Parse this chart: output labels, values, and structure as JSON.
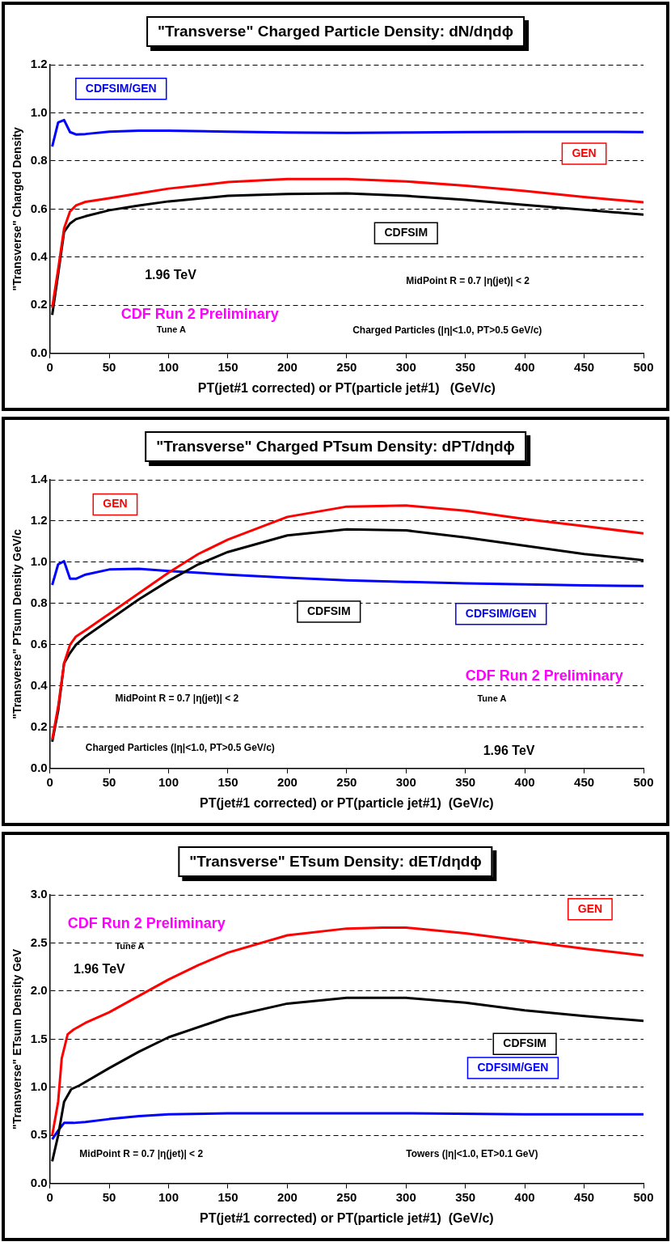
{
  "chart_data": [
    {
      "type": "line",
      "title": "\"Transverse\" Charged Particle Density: dN/dηdϕ",
      "xlabel": "PT(jet#1 corrected) or PT(particle jet#1)   (GeV/c)",
      "ylabel": "\"Transverse\" Charged Density",
      "xlim": [
        0,
        500
      ],
      "xticks": [
        0,
        50,
        100,
        150,
        200,
        250,
        300,
        350,
        400,
        450,
        500
      ],
      "ylim": [
        0,
        1.2
      ],
      "yticks": [
        {
          "value": 0,
          "label": "0.0"
        },
        0.2,
        0.4,
        0.6,
        0.8,
        {
          "value": 1,
          "label": "1.0"
        },
        1.2
      ],
      "grid": "y",
      "legend": false,
      "marker": "none",
      "line_style": "solid",
      "annotations": [
        "1.96 TeV",
        "CDF Run 2 Preliminary",
        "Tune A",
        "MidPoint R = 0.7 |η(jet)| < 2",
        "Charged Particles (|η|<1.0, PT>0.5 GeV/c)"
      ],
      "series": [
        {
          "name": "CDFSIM/GEN",
          "color": "#0000ff",
          "x": [
            2,
            7,
            12,
            17,
            22,
            30,
            50,
            75,
            100,
            150,
            200,
            250,
            300,
            350,
            400,
            450,
            500
          ],
          "values": [
            0.86,
            0.96,
            0.97,
            0.92,
            0.91,
            0.912,
            0.922,
            0.926,
            0.926,
            0.922,
            0.918,
            0.917,
            0.918,
            0.92,
            0.921,
            0.921,
            0.92
          ]
        },
        {
          "name": "GEN",
          "color": "#ff0000",
          "x": [
            2,
            7,
            12,
            17,
            22,
            30,
            50,
            75,
            100,
            150,
            200,
            250,
            300,
            350,
            400,
            450,
            500
          ],
          "values": [
            0.19,
            0.35,
            0.52,
            0.59,
            0.615,
            0.63,
            0.645,
            0.665,
            0.685,
            0.712,
            0.725,
            0.725,
            0.715,
            0.697,
            0.675,
            0.65,
            0.628
          ]
        },
        {
          "name": "CDFSIM",
          "color": "#000000",
          "x": [
            2,
            7,
            12,
            17,
            22,
            30,
            50,
            75,
            100,
            150,
            200,
            250,
            300,
            350,
            400,
            450,
            500
          ],
          "values": [
            0.16,
            0.33,
            0.505,
            0.54,
            0.558,
            0.57,
            0.595,
            0.615,
            0.632,
            0.655,
            0.663,
            0.665,
            0.655,
            0.638,
            0.617,
            0.597,
            0.577
          ]
        }
      ]
    },
    {
      "type": "line",
      "title": "\"Transverse\" Charged PTsum Density: dPT/dηdϕ",
      "xlabel": "PT(jet#1 corrected) or PT(particle jet#1)  (GeV/c)",
      "ylabel": "\"Transverse\" PTsum Density GeV/c",
      "xlim": [
        0,
        500
      ],
      "xticks": [
        0,
        50,
        100,
        150,
        200,
        250,
        300,
        350,
        400,
        450,
        500
      ],
      "ylim": [
        0,
        1.4
      ],
      "yticks": [
        {
          "value": 0,
          "label": "0.0"
        },
        0.2,
        0.4,
        0.6,
        0.8,
        {
          "value": 1,
          "label": "1.0"
        },
        1.2,
        1.4
      ],
      "grid": "y",
      "legend": false,
      "marker": "none",
      "line_style": "solid",
      "annotations": [
        "1.96 TeV",
        "CDF Run 2 Preliminary",
        "Tune A",
        "MidPoint R = 0.7 |η(jet)| < 2",
        "Charged Particles (|η|<1.0, PT>0.5 GeV/c)"
      ],
      "series": [
        {
          "name": "GEN",
          "color": "#ff0000",
          "x": [
            2,
            7,
            12,
            17,
            22,
            30,
            50,
            75,
            100,
            125,
            150,
            200,
            250,
            300,
            350,
            400,
            450,
            500
          ],
          "values": [
            0.14,
            0.3,
            0.51,
            0.6,
            0.64,
            0.67,
            0.75,
            0.85,
            0.95,
            1.04,
            1.11,
            1.22,
            1.27,
            1.275,
            1.25,
            1.21,
            1.175,
            1.14
          ]
        },
        {
          "name": "CDFSIM",
          "color": "#000000",
          "x": [
            2,
            7,
            12,
            17,
            22,
            30,
            50,
            75,
            100,
            125,
            150,
            200,
            250,
            300,
            350,
            400,
            450,
            500
          ],
          "values": [
            0.13,
            0.28,
            0.51,
            0.56,
            0.6,
            0.64,
            0.72,
            0.82,
            0.91,
            0.99,
            1.05,
            1.13,
            1.16,
            1.155,
            1.12,
            1.08,
            1.04,
            1.01
          ]
        },
        {
          "name": "CDFSIM/GEN",
          "color": "#0000ff",
          "x": [
            2,
            7,
            12,
            17,
            22,
            30,
            50,
            75,
            100,
            150,
            200,
            250,
            300,
            350,
            400,
            450,
            500
          ],
          "values": [
            0.89,
            0.99,
            1.005,
            0.92,
            0.92,
            0.94,
            0.965,
            0.968,
            0.958,
            0.94,
            0.925,
            0.912,
            0.905,
            0.898,
            0.893,
            0.888,
            0.885
          ]
        }
      ]
    },
    {
      "type": "line",
      "title": "\"Transverse\" ETsum Density: dET/dηdϕ",
      "xlabel": "PT(jet#1 corrected) or PT(particle jet#1)  (GeV/c)",
      "ylabel": "\"Transverse\" ETsum Density GeV",
      "xlim": [
        0,
        500
      ],
      "xticks": [
        0,
        50,
        100,
        150,
        200,
        250,
        300,
        350,
        400,
        450,
        500
      ],
      "ylim": [
        0,
        3.0
      ],
      "yticks": [
        {
          "value": 0,
          "label": "0.0"
        },
        0.5,
        {
          "value": 1,
          "label": "1.0"
        },
        1.5,
        {
          "value": 2,
          "label": "2.0"
        },
        2.5,
        {
          "value": 3,
          "label": "3.0"
        }
      ],
      "grid": "y",
      "legend": false,
      "marker": "none",
      "line_style": "solid",
      "annotations": [
        "1.96 TeV",
        "CDF Run 2 Preliminary",
        "Tune A",
        "MidPoint R = 0.7 |η(jet)| < 2",
        "Towers (|η|<1.0, ET>0.1 GeV)"
      ],
      "series": [
        {
          "name": "GEN",
          "color": "#ff0000",
          "x": [
            2,
            7,
            10,
            15,
            20,
            30,
            50,
            75,
            100,
            125,
            150,
            200,
            250,
            280,
            300,
            350,
            400,
            450,
            500
          ],
          "values": [
            0.5,
            0.85,
            1.3,
            1.55,
            1.6,
            1.67,
            1.78,
            1.95,
            2.12,
            2.27,
            2.4,
            2.58,
            2.65,
            2.66,
            2.66,
            2.6,
            2.52,
            2.44,
            2.37
          ]
        },
        {
          "name": "CDFSIM",
          "color": "#000000",
          "x": [
            2,
            7,
            12,
            18,
            25,
            50,
            75,
            100,
            150,
            200,
            250,
            300,
            350,
            400,
            450,
            500
          ],
          "values": [
            0.23,
            0.5,
            0.85,
            0.98,
            1.02,
            1.2,
            1.37,
            1.52,
            1.73,
            1.87,
            1.93,
            1.93,
            1.88,
            1.8,
            1.74,
            1.69
          ]
        },
        {
          "name": "CDFSIM/GEN",
          "color": "#0000ff",
          "x": [
            2,
            7,
            12,
            20,
            30,
            50,
            75,
            100,
            150,
            200,
            300,
            400,
            500
          ],
          "values": [
            0.46,
            0.55,
            0.63,
            0.63,
            0.64,
            0.67,
            0.7,
            0.72,
            0.73,
            0.73,
            0.73,
            0.72,
            0.72
          ]
        }
      ]
    }
  ]
}
